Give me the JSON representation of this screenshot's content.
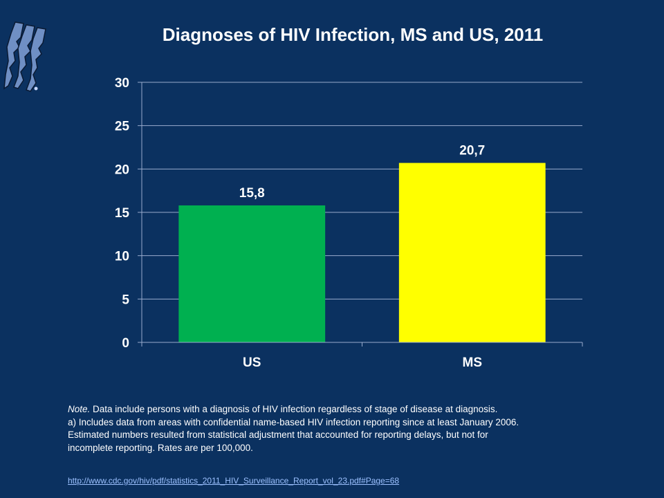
{
  "slide": {
    "background": "#0b3160",
    "logo_icon": "mississippi-faces-logo-icon"
  },
  "chart_data": {
    "type": "bar",
    "title": "Diagnoses of HIV Infection, MS and US, 2011",
    "categories": [
      "US",
      "MS"
    ],
    "values": [
      15.8,
      20.7
    ],
    "data_labels": [
      "15,8",
      "20,7"
    ],
    "colors": [
      "#00b050",
      "#ffff00"
    ],
    "ylim": [
      0,
      30
    ],
    "yticks": [
      0,
      5,
      10,
      15,
      20,
      25,
      30
    ],
    "xlabel": "",
    "ylabel": "",
    "grid": true,
    "legend": "none"
  },
  "notes": {
    "note_lead": "Note.",
    "note_text": " Data include persons with a diagnosis of HIV infection regardless of stage of disease at diagnosis.",
    "line2": "a) Includes data from areas with confidential name-based HIV infection reporting since at least January 2006.",
    "line3": "Estimated numbers resulted from statistical adjustment that accounted for reporting delays, but not for",
    "line4": "incomplete reporting. Rates are per 100,000."
  },
  "source": {
    "link_text": "http://www.cdc.gov/hiv/pdf/statistics_2011_HIV_Surveillance_Report_vol_23.pdf#Page=68"
  }
}
